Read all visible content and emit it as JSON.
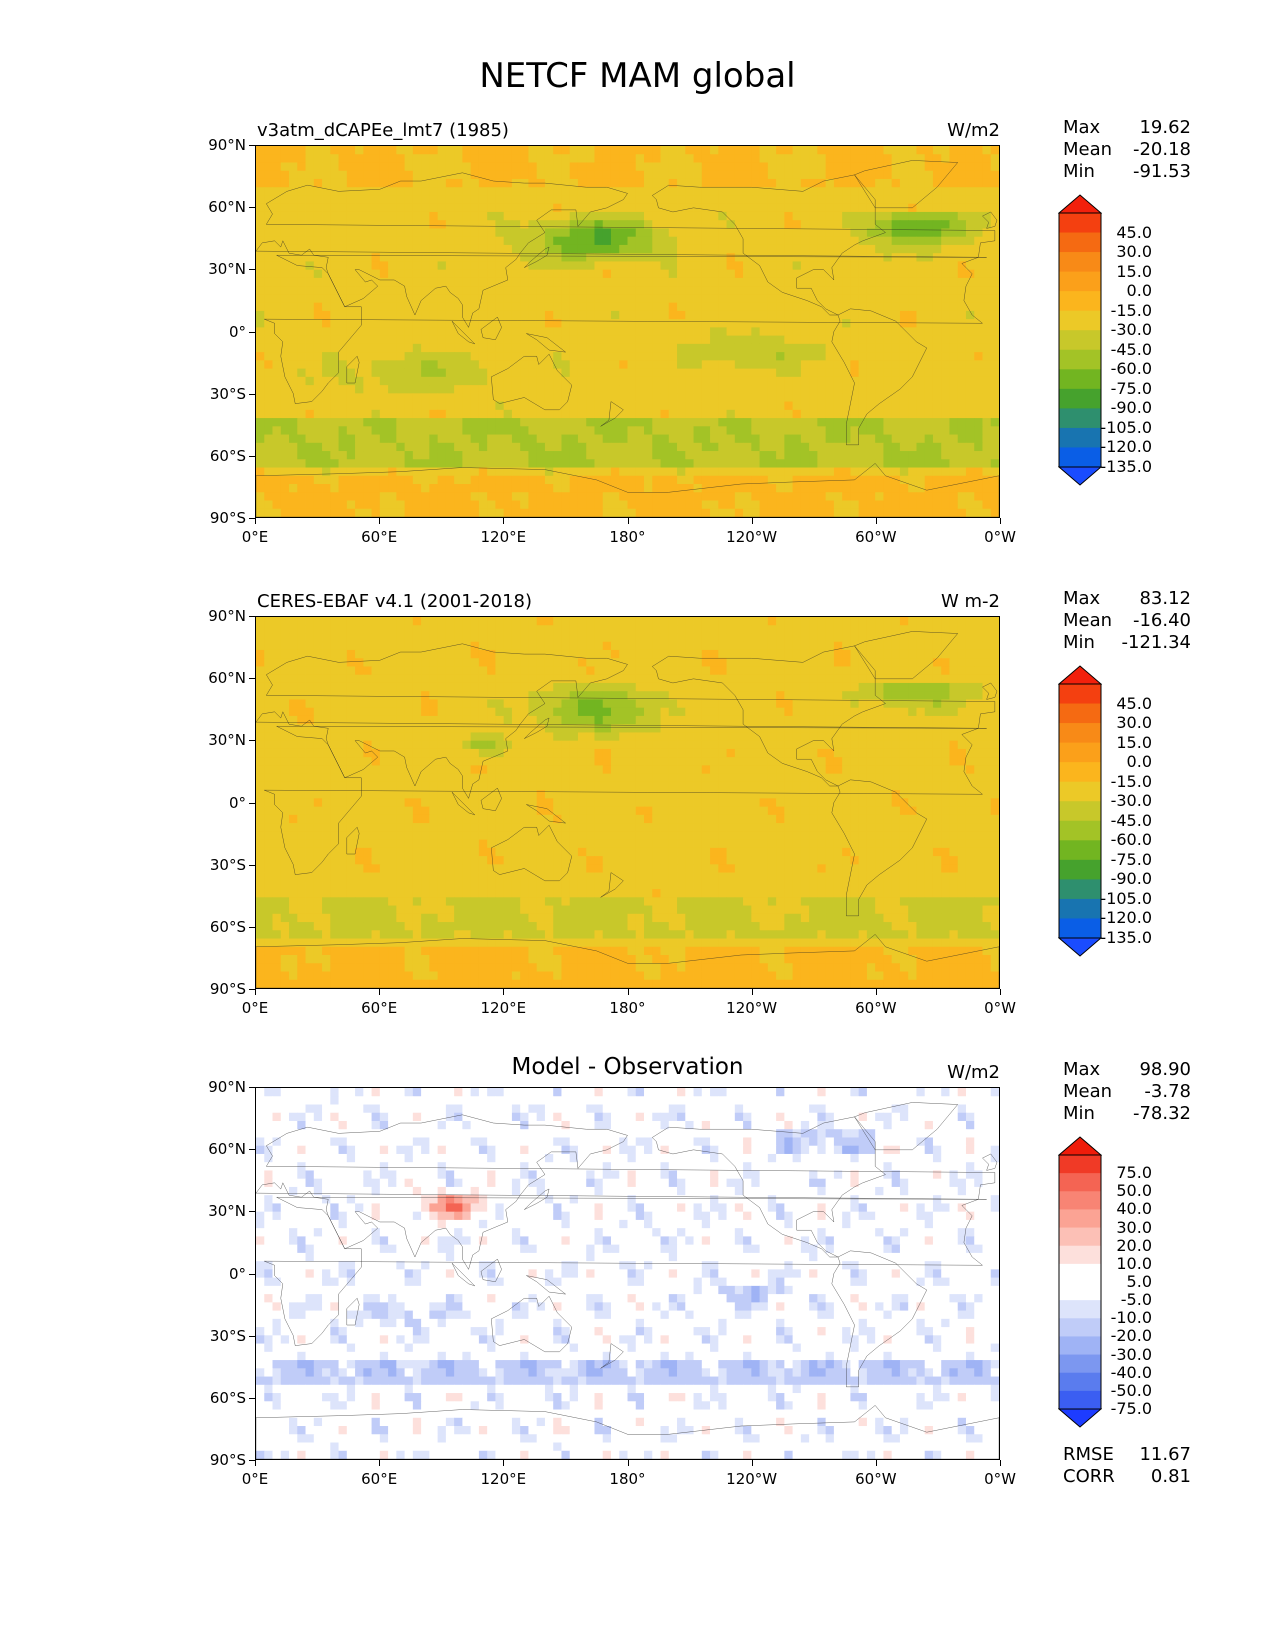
{
  "title": "NETCF MAM global",
  "lat_labels": [
    "90°N",
    "60°N",
    "30°N",
    "0°",
    "30°S",
    "60°S",
    "90°S"
  ],
  "lon_labels": [
    "0°E",
    "60°E",
    "120°E",
    "180°",
    "120°W",
    "60°W",
    "0°W"
  ],
  "colors": {
    "abs": [
      "#1a4cff",
      "#0a5ee6",
      "#1874b0",
      "#2e8f6e",
      "#46a22d",
      "#72b521",
      "#a3c326",
      "#c8c82a",
      "#ecc927",
      "#fbb51d",
      "#fba01a",
      "#f88a17",
      "#f56a12",
      "#f44010",
      "#f2200c"
    ],
    "diff": [
      "#1d3cff",
      "#3b5ef2",
      "#5a7cee",
      "#7c97f0",
      "#9fb3f5",
      "#c0ccf8",
      "#dde4fb",
      "#ffffff",
      "#ffffff",
      "#fde0dc",
      "#fcc0b6",
      "#fba394",
      "#f88474",
      "#f46453",
      "#f03a26",
      "#ef1c0a"
    ]
  },
  "panels": [
    {
      "title": "v3atm_dCAPEe_lmt7 (1985)",
      "units": "W/m2",
      "stats": {
        "max_label": "Max",
        "max": "19.62",
        "mean_label": "Mean",
        "mean": "-20.18",
        "min_label": "Min",
        "min": "-91.53"
      },
      "colorbar_labels": [
        "45.0",
        "30.0",
        "15.0",
        "0.0",
        "-15.0",
        "-30.0",
        "-45.0",
        "-60.0",
        "-75.0",
        "-90.0",
        "-105.0",
        "-120.0",
        "-135.0"
      ]
    },
    {
      "title": "CERES-EBAF v4.1 (2001-2018)",
      "units": "W m-2",
      "stats": {
        "max_label": "Max",
        "max": "83.12",
        "mean_label": "Mean",
        "mean": "-16.40",
        "min_label": "Min",
        "min": "-121.34"
      },
      "colorbar_labels": [
        "45.0",
        "30.0",
        "15.0",
        "0.0",
        "-15.0",
        "-30.0",
        "-45.0",
        "-60.0",
        "-75.0",
        "-90.0",
        "-105.0",
        "-120.0",
        "-135.0"
      ]
    },
    {
      "title": "Model - Observation",
      "units": "W/m2",
      "stats": {
        "max_label": "Max",
        "max": "98.90",
        "mean_label": "Mean",
        "mean": "-3.78",
        "min_label": "Min",
        "min": "-78.32"
      },
      "colorbar_labels": [
        "75.0",
        "50.0",
        "40.0",
        "30.0",
        "20.0",
        "10.0",
        "5.0",
        "-5.0",
        "-10.0",
        "-20.0",
        "-30.0",
        "-40.0",
        "-50.0",
        "-75.0"
      ],
      "extra_stats": {
        "rmse_label": "RMSE",
        "rmse": "11.67",
        "corr_label": "CORR",
        "corr": "0.81"
      }
    }
  ],
  "chart_data": [
    {
      "type": "heatmap",
      "title": "v3atm_dCAPEe_lmt7 (1985)",
      "units": "W/m2",
      "xlim": [
        0,
        360
      ],
      "ylim": [
        -90,
        90
      ],
      "max": 19.62,
      "mean": -20.18,
      "min": -91.53,
      "levels": [
        -135,
        -120,
        -105,
        -90,
        -75,
        -60,
        -45,
        -30,
        -15,
        0,
        15,
        30,
        45
      ]
    },
    {
      "type": "heatmap",
      "title": "CERES-EBAF v4.1 (2001-2018)",
      "units": "W m-2",
      "xlim": [
        0,
        360
      ],
      "ylim": [
        -90,
        90
      ],
      "max": 83.12,
      "mean": -16.4,
      "min": -121.34,
      "levels": [
        -135,
        -120,
        -105,
        -90,
        -75,
        -60,
        -45,
        -30,
        -15,
        0,
        15,
        30,
        45
      ]
    },
    {
      "type": "heatmap",
      "title": "Model - Observation",
      "units": "W/m2",
      "xlim": [
        0,
        360
      ],
      "ylim": [
        -90,
        90
      ],
      "max": 98.9,
      "mean": -3.78,
      "min": -78.32,
      "rmse": 11.67,
      "corr": 0.81,
      "levels": [
        -75,
        -50,
        -40,
        -30,
        -20,
        -10,
        -5,
        5,
        10,
        20,
        30,
        40,
        50,
        75
      ]
    }
  ]
}
